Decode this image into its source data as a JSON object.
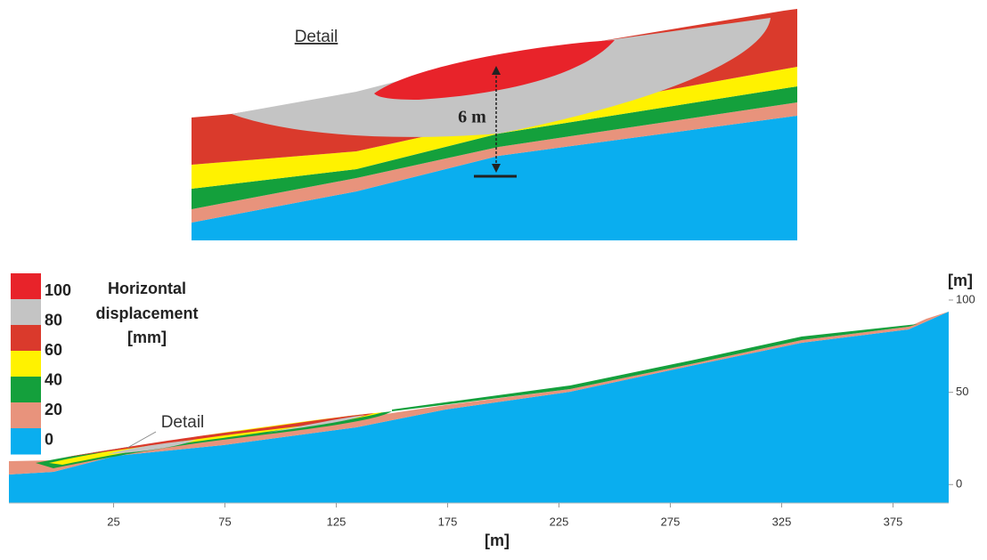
{
  "detail": {
    "title": "Detail",
    "dimension": "6 m"
  },
  "legend": {
    "title_lines": [
      "Horizontal",
      "displacement",
      "[mm]"
    ],
    "levels": [
      100,
      80,
      60,
      40,
      20,
      0
    ],
    "colors": [
      "#e8232a",
      "#c4c4c4",
      "#da3a2c",
      "#fff200",
      "#14a03c",
      "#e8937c",
      "#0aaeef"
    ]
  },
  "profile": {
    "annotation": "Detail",
    "xlabel": "[m]",
    "ylabel": "[m]",
    "xlim": [
      -22,
      400
    ],
    "ylim": [
      -10,
      100
    ],
    "xticks": [
      25,
      75,
      125,
      175,
      225,
      275,
      325,
      375
    ],
    "yticks": [
      0,
      50,
      100
    ]
  }
}
